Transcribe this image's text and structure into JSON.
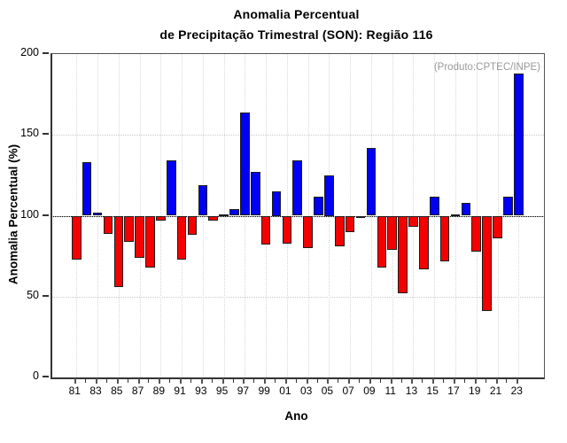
{
  "title": {
    "line1": "Anomalia Percentual",
    "line2": "de Precipitação Trimestral (SON): Região 116"
  },
  "source_label": "(Produto:CPTEC/INPE)",
  "axes": {
    "y_label": "Anomalia Percentual (%)",
    "x_label": "Ano",
    "y_ticks": [
      0,
      50,
      100,
      150,
      200
    ],
    "x_tick_labels": [
      "81",
      "83",
      "85",
      "87",
      "89",
      "91",
      "93",
      "95",
      "97",
      "99",
      "01",
      "03",
      "05",
      "07",
      "09",
      "11",
      "13",
      "15",
      "17",
      "19",
      "21",
      "23"
    ]
  },
  "chart_data": {
    "type": "bar",
    "title": "Anomalia Percentual de Precipitação Trimestral (SON): Região 116",
    "xlabel": "Ano",
    "ylabel": "Anomalia Percentual (%)",
    "ylim": [
      0,
      200
    ],
    "baseline": 100,
    "grid": "dotted",
    "legend": "none",
    "x": [
      1981,
      1982,
      1983,
      1984,
      1985,
      1986,
      1987,
      1988,
      1989,
      1990,
      1991,
      1992,
      1993,
      1994,
      1995,
      1996,
      1997,
      1998,
      1999,
      2000,
      2001,
      2002,
      2003,
      2004,
      2005,
      2006,
      2007,
      2008,
      2009,
      2010,
      2011,
      2012,
      2013,
      2014,
      2015,
      2016,
      2017,
      2018,
      2019,
      2020,
      2021,
      2022,
      2023
    ],
    "values": [
      73,
      133,
      102,
      89,
      56,
      84,
      74,
      68,
      97,
      134,
      73,
      88,
      119,
      97,
      101,
      104,
      164,
      127,
      82,
      115,
      83,
      134,
      80,
      112,
      125,
      81,
      90,
      100,
      142,
      68,
      79,
      52,
      93,
      67,
      112,
      72,
      101,
      108,
      78,
      41,
      86,
      112,
      188
    ],
    "colors": {
      "above_baseline": "#0000f5",
      "below_baseline": "#f50000",
      "at_baseline": "#111111",
      "source_text": "#999999"
    }
  }
}
